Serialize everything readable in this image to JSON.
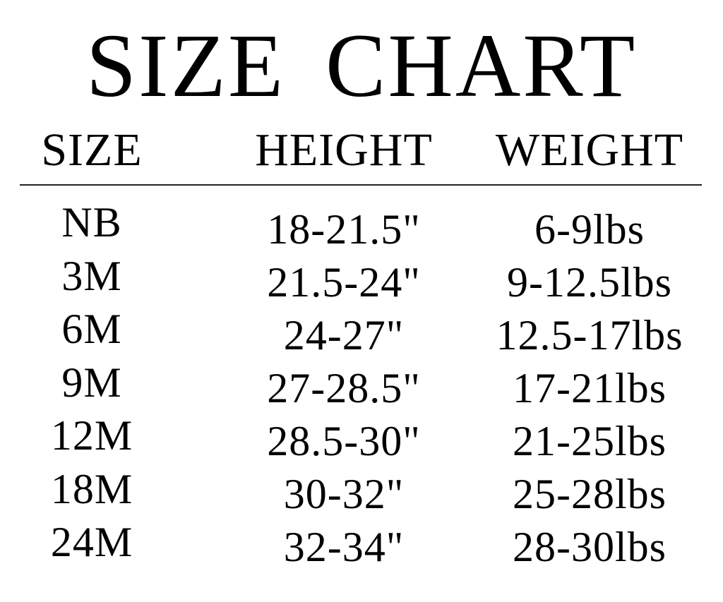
{
  "title": "SIZE CHART",
  "headers": {
    "size": "SIZE",
    "height": "HEIGHT",
    "weight": "WEIGHT"
  },
  "rows": [
    {
      "size": "NB",
      "height": "18-21.5\"",
      "weight": "6-9lbs"
    },
    {
      "size": "3M",
      "height": "21.5-24\"",
      "weight": "9-12.5lbs"
    },
    {
      "size": "6M",
      "height": "24-27\"",
      "weight": "12.5-17lbs"
    },
    {
      "size": "9M",
      "height": "27-28.5\"",
      "weight": "17-21lbs"
    },
    {
      "size": "12M",
      "height": "28.5-30\"",
      "weight": "21-25lbs"
    },
    {
      "size": "18M",
      "height": "30-32\"",
      "weight": "25-28lbs"
    },
    {
      "size": "24M",
      "height": "32-34\"",
      "weight": "28-30lbs"
    }
  ]
}
